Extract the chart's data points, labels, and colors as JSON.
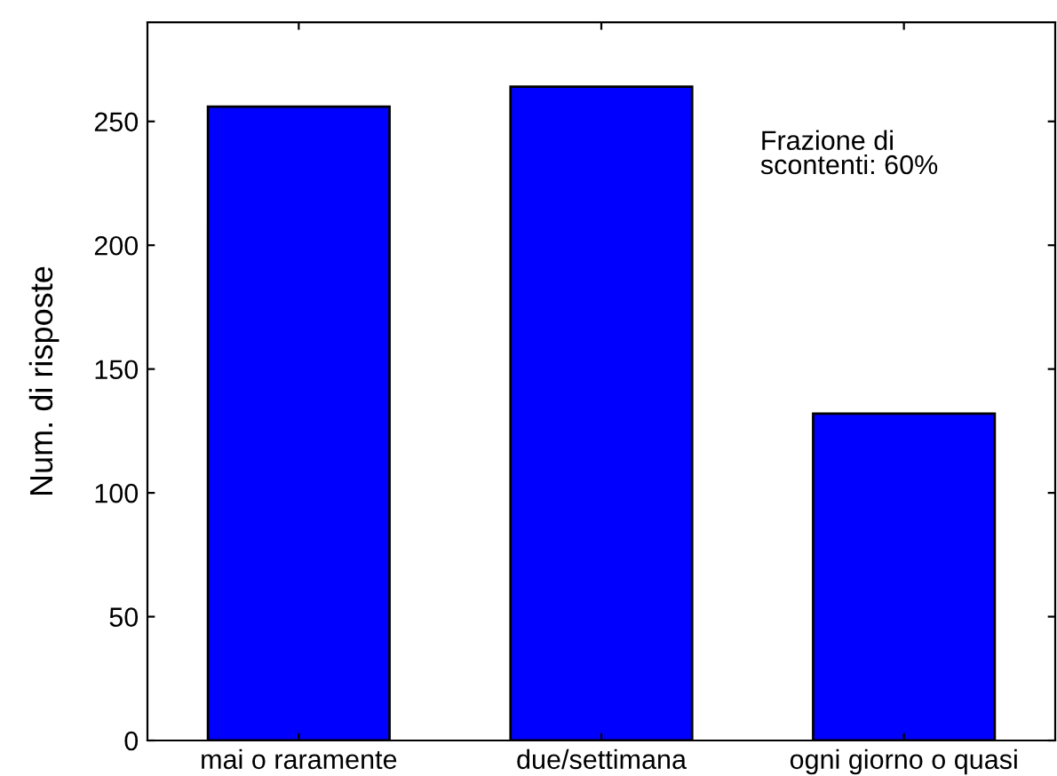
{
  "chart_data": {
    "type": "bar",
    "ylabel": "Num. di risposte",
    "categories": [
      "mai o raramente",
      "due/settimana",
      "ogni giorno o quasi"
    ],
    "values": [
      256,
      264,
      132
    ],
    "color": "#0000ff",
    "ylim": [
      0,
      290
    ],
    "yticks": [
      0,
      50,
      100,
      150,
      200,
      250
    ],
    "grid": false,
    "annotations": [
      "Frazione di\nscontenti: 60%"
    ]
  }
}
